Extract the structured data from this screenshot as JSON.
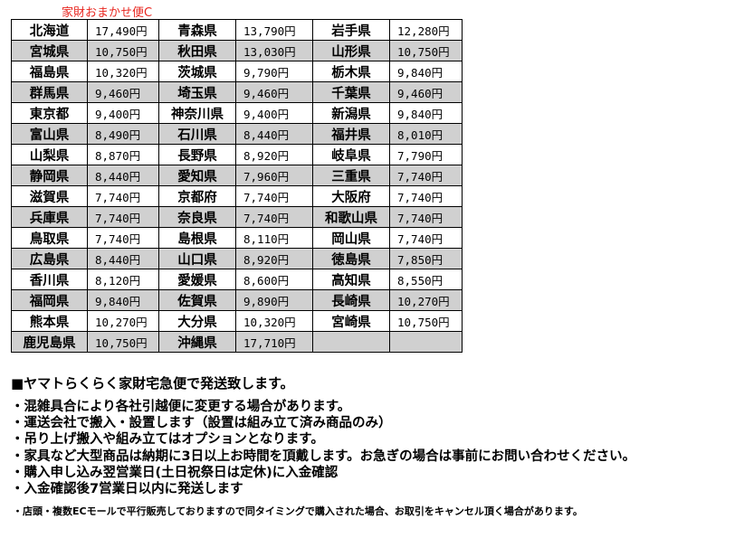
{
  "title": "家財おまかせ便C",
  "rows": [
    [
      [
        "北海道",
        "17,490円"
      ],
      [
        "青森県",
        "13,790円"
      ],
      [
        "岩手県",
        "12,280円"
      ]
    ],
    [
      [
        "宮城県",
        "10,750円"
      ],
      [
        "秋田県",
        "13,030円"
      ],
      [
        "山形県",
        "10,750円"
      ]
    ],
    [
      [
        "福島県",
        "10,320円"
      ],
      [
        "茨城県",
        "9,790円"
      ],
      [
        "栃木県",
        "9,840円"
      ]
    ],
    [
      [
        "群馬県",
        "9,460円"
      ],
      [
        "埼玉県",
        "9,460円"
      ],
      [
        "千葉県",
        "9,460円"
      ]
    ],
    [
      [
        "東京都",
        "9,400円"
      ],
      [
        "神奈川県",
        "9,400円"
      ],
      [
        "新潟県",
        "9,840円"
      ]
    ],
    [
      [
        "富山県",
        "8,490円"
      ],
      [
        "石川県",
        "8,440円"
      ],
      [
        "福井県",
        "8,010円"
      ]
    ],
    [
      [
        "山梨県",
        "8,870円"
      ],
      [
        "長野県",
        "8,920円"
      ],
      [
        "岐阜県",
        "7,790円"
      ]
    ],
    [
      [
        "静岡県",
        "8,440円"
      ],
      [
        "愛知県",
        "7,960円"
      ],
      [
        "三重県",
        "7,740円"
      ]
    ],
    [
      [
        "滋賀県",
        "7,740円"
      ],
      [
        "京都府",
        "7,740円"
      ],
      [
        "大阪府",
        "7,740円"
      ]
    ],
    [
      [
        "兵庫県",
        "7,740円"
      ],
      [
        "奈良県",
        "7,740円"
      ],
      [
        "和歌山県",
        "7,740円"
      ]
    ],
    [
      [
        "鳥取県",
        "7,740円"
      ],
      [
        "島根県",
        "8,110円"
      ],
      [
        "岡山県",
        "7,740円"
      ]
    ],
    [
      [
        "広島県",
        "8,440円"
      ],
      [
        "山口県",
        "8,920円"
      ],
      [
        "徳島県",
        "7,850円"
      ]
    ],
    [
      [
        "香川県",
        "8,120円"
      ],
      [
        "愛媛県",
        "8,600円"
      ],
      [
        "高知県",
        "8,550円"
      ]
    ],
    [
      [
        "福岡県",
        "9,840円"
      ],
      [
        "佐賀県",
        "9,890円"
      ],
      [
        "長崎県",
        "10,270円"
      ]
    ],
    [
      [
        "熊本県",
        "10,270円"
      ],
      [
        "大分県",
        "10,320円"
      ],
      [
        "宮崎県",
        "10,750円"
      ]
    ],
    [
      [
        "鹿児島県",
        "10,750円"
      ],
      [
        "沖縄県",
        "17,710円"
      ],
      [
        "",
        ""
      ]
    ]
  ],
  "notes": {
    "heading": "■ヤマトらくらく家財宅急便で発送致します。",
    "items": [
      "・混雑具合により各社引越便に変更する場合があります。",
      "・運送会社で搬入・設置します（設置は組み立て済み商品のみ）",
      "・吊り上げ搬入や組み立てはオプションとなります。",
      "・家具など大型商品は納期に3日以上お時間を頂戴します。お急ぎの場合は事前にお問い合わせください。",
      "・購入申し込み翌営業日(土日祝祭日は定休)に入金確認",
      "・入金確認後7営業日以内に発送します"
    ],
    "footnote": "・店頭・複数ECモールで平行販売しておりますので同タイミングで購入された場合、お取引をキャンセル頂く場合があります。"
  }
}
